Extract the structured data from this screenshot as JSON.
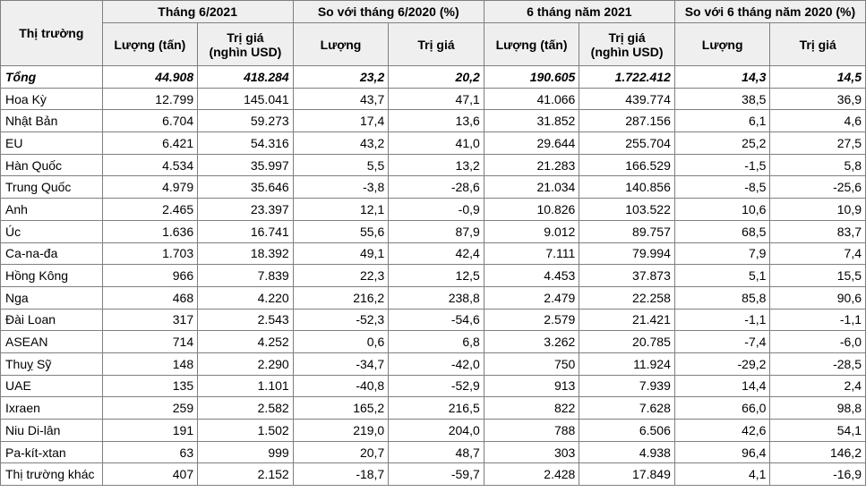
{
  "table": {
    "header": {
      "market": "Thị trường",
      "groups": [
        "Tháng 6/2021",
        "So với tháng 6/2020 (%)",
        "6 tháng năm 2021",
        "So với 6 tháng năm 2020 (%)"
      ],
      "subcols": [
        "Lượng (tấn)",
        "Trị giá\n(nghìn USD)",
        "Lượng",
        "Trị giá",
        "Lượng (tấn)",
        "Trị giá\n(nghìn USD)",
        "Lượng",
        "Trị giá"
      ]
    },
    "rows": [
      [
        "Tổng",
        "44.908",
        "418.284",
        "23,2",
        "20,2",
        "190.605",
        "1.722.412",
        "14,3",
        "14,5"
      ],
      [
        "Hoa Kỳ",
        "12.799",
        "145.041",
        "43,7",
        "47,1",
        "41.066",
        "439.774",
        "38,5",
        "36,9"
      ],
      [
        "Nhật Bản",
        "6.704",
        "59.273",
        "17,4",
        "13,6",
        "31.852",
        "287.156",
        "6,1",
        "4,6"
      ],
      [
        "EU",
        "6.421",
        "54.316",
        "43,2",
        "41,0",
        "29.644",
        "255.704",
        "25,2",
        "27,5"
      ],
      [
        "Hàn Quốc",
        "4.534",
        "35.997",
        "5,5",
        "13,2",
        "21.283",
        "166.529",
        "-1,5",
        "5,8"
      ],
      [
        "Trung Quốc",
        "4.979",
        "35.646",
        "-3,8",
        "-28,6",
        "21.034",
        "140.856",
        "-8,5",
        "-25,6"
      ],
      [
        "Anh",
        "2.465",
        "23.397",
        "12,1",
        "-0,9",
        "10.826",
        "103.522",
        "10,6",
        "10,9"
      ],
      [
        "Úc",
        "1.636",
        "16.741",
        "55,6",
        "87,9",
        "9.012",
        "89.757",
        "68,5",
        "83,7"
      ],
      [
        "Ca-na-đa",
        "1.703",
        "18.392",
        "49,1",
        "42,4",
        "7.111",
        "79.994",
        "7,9",
        "7,4"
      ],
      [
        "Hồng Kông",
        "966",
        "7.839",
        "22,3",
        "12,5",
        "4.453",
        "37.873",
        "5,1",
        "15,5"
      ],
      [
        "Nga",
        "468",
        "4.220",
        "216,2",
        "238,8",
        "2.479",
        "22.258",
        "85,8",
        "90,6"
      ],
      [
        "Đài Loan",
        "317",
        "2.543",
        "-52,3",
        "-54,6",
        "2.579",
        "21.421",
        "-1,1",
        "-1,1"
      ],
      [
        "ASEAN",
        "714",
        "4.252",
        "0,6",
        "6,8",
        "3.262",
        "20.785",
        "-7,4",
        "-6,0"
      ],
      [
        "Thuỵ Sỹ",
        "148",
        "2.290",
        "-34,7",
        "-42,0",
        "750",
        "11.924",
        "-29,2",
        "-28,5"
      ],
      [
        "UAE",
        "135",
        "1.101",
        "-40,8",
        "-52,9",
        "913",
        "7.939",
        "14,4",
        "2,4"
      ],
      [
        "Ixraen",
        "259",
        "2.582",
        "165,2",
        "216,5",
        "822",
        "7.628",
        "66,0",
        "98,8"
      ],
      [
        "Niu Di-lân",
        "191",
        "1.502",
        "219,0",
        "204,0",
        "788",
        "6.506",
        "42,6",
        "54,1"
      ],
      [
        "Pa-kít-xtan",
        "63",
        "999",
        "20,7",
        "48,7",
        "303",
        "4.938",
        "96,4",
        "146,2"
      ],
      [
        "Thị trường khác",
        "407",
        "2.152",
        "-18,7",
        "-59,7",
        "2.428",
        "17.849",
        "4,1",
        "-16,9"
      ]
    ]
  }
}
